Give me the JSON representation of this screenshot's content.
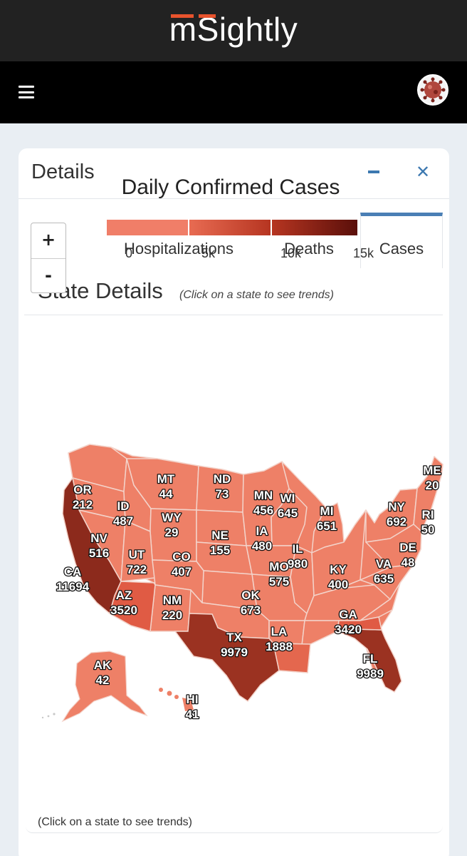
{
  "brand": {
    "name": "mSightly"
  },
  "nav": {
    "menu_icon": "hamburger-icon",
    "avatar_icon": "virus-avatar-icon"
  },
  "card": {
    "title": "Details",
    "minimize_icon": "minus-icon",
    "close_icon": "close-icon",
    "close_glyph": "✕",
    "zoom_in": "+",
    "zoom_out": "-"
  },
  "tabs": [
    {
      "label": "Hospitalizations",
      "active": false
    },
    {
      "label": "Deaths",
      "active": false
    },
    {
      "label": "Cases",
      "active": true
    }
  ],
  "section": {
    "title": "State Details",
    "hint": "(Click on a state to see trends)",
    "footer_hint": "(Click on a state to see trends)"
  },
  "colors": {
    "accent": "#4a7fb5",
    "logo_accent": "#e8532d",
    "scale": [
      "#f07e68",
      "#d9533a",
      "#b63521",
      "#5a0f0a"
    ]
  },
  "chart_data": {
    "type": "choropleth",
    "title": "Daily Confirmed Cases",
    "legend_ticks": [
      "0",
      "5k",
      "10k",
      "15k"
    ],
    "legend_range": [
      0,
      15000
    ],
    "states": [
      {
        "code": "OR",
        "value": 212
      },
      {
        "code": "ID",
        "value": 487
      },
      {
        "code": "MT",
        "value": 44
      },
      {
        "code": "ND",
        "value": 73
      },
      {
        "code": "MN",
        "value": 456
      },
      {
        "code": "WI",
        "value": 645
      },
      {
        "code": "MI",
        "value": 651
      },
      {
        "code": "NY",
        "value": 692
      },
      {
        "code": "ME",
        "value": 20
      },
      {
        "code": "RI",
        "value": 50
      },
      {
        "code": "WY",
        "value": 29
      },
      {
        "code": "NV",
        "value": 516
      },
      {
        "code": "NE",
        "value": 155
      },
      {
        "code": "IA",
        "value": 480
      },
      {
        "code": "IL",
        "value": 980
      },
      {
        "code": "DE",
        "value": 48
      },
      {
        "code": "UT",
        "value": 722
      },
      {
        "code": "CO",
        "value": 407
      },
      {
        "code": "MO",
        "value": 575
      },
      {
        "code": "KY",
        "value": 400
      },
      {
        "code": "VA",
        "value": 635
      },
      {
        "code": "CA",
        "value": 11694
      },
      {
        "code": "AZ",
        "value": 3520
      },
      {
        "code": "NM",
        "value": 220
      },
      {
        "code": "OK",
        "value": 673
      },
      {
        "code": "GA",
        "value": 3420
      },
      {
        "code": "TX",
        "value": 9979
      },
      {
        "code": "LA",
        "value": 1888
      },
      {
        "code": "FL",
        "value": 9989
      },
      {
        "code": "AK",
        "value": 42
      },
      {
        "code": "HI",
        "value": 41
      }
    ]
  }
}
